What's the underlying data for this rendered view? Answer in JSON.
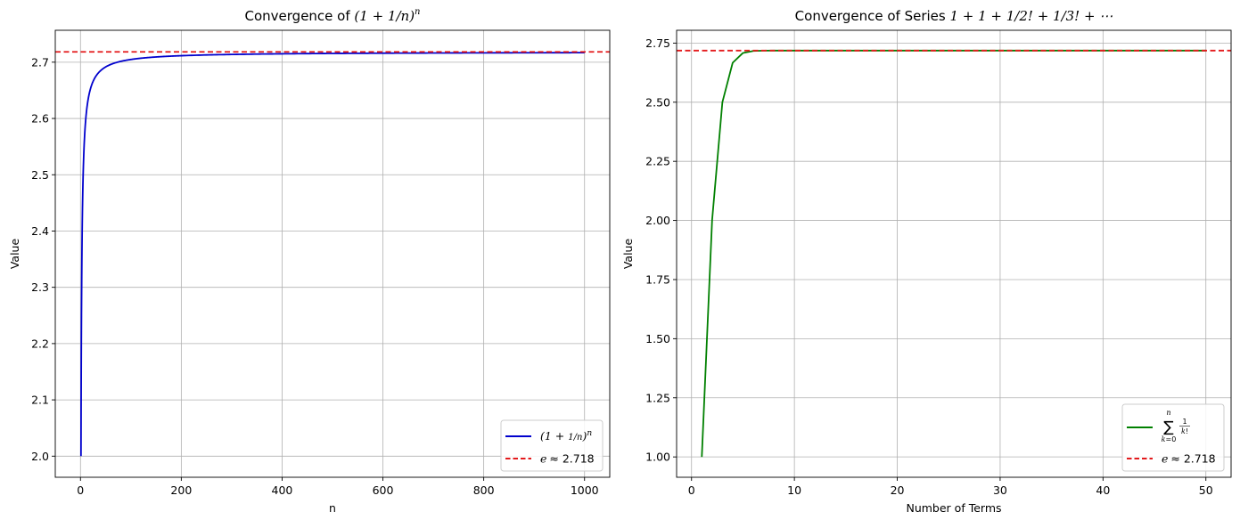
{
  "colors": {
    "series1": "#0000cd",
    "series2": "#008000",
    "reference": "#e31a1c",
    "grid": "#b0b0b0",
    "axes": "#000000"
  },
  "chart_data": [
    {
      "type": "line",
      "title": "Convergence of (1 + 1/n)ⁿ",
      "title_prefix": "Convergence of ",
      "xlabel": "n",
      "ylabel": "Value",
      "xlim": [
        -50,
        1050
      ],
      "ylim": [
        1.9625,
        2.7567
      ],
      "xticks": [
        0,
        200,
        400,
        600,
        800,
        1000
      ],
      "xtick_labels": [
        "0",
        "200",
        "400",
        "600",
        "800",
        "1000"
      ],
      "yticks": [
        2.0,
        2.1,
        2.2,
        2.3,
        2.4,
        2.5,
        2.6,
        2.7
      ],
      "ytick_labels": [
        "2.0",
        "2.1",
        "2.2",
        "2.3",
        "2.4",
        "2.5",
        "2.6",
        "2.7"
      ],
      "grid": true,
      "legend_position": "lower-right",
      "series": [
        {
          "name": "(1 + 1/n)ⁿ",
          "function": "(1+1/n)^n",
          "x_range": [
            1,
            1000
          ],
          "style": "solid"
        }
      ],
      "reference_line": {
        "name": "e ≈ 2.718",
        "label_prefix": "e",
        "label_value": "≈ 2.718",
        "y": 2.71828,
        "style": "dashed"
      }
    },
    {
      "type": "line",
      "title": "Convergence of Series 1 + 1 + 1/2! + 1/3! + ⋯",
      "title_prefix": "Convergence of Series ",
      "xlabel": "Number of Terms",
      "ylabel": "Value",
      "xlim": [
        -1.45,
        52.45
      ],
      "ylim": [
        0.914,
        2.8042
      ],
      "xticks": [
        0,
        10,
        20,
        30,
        40,
        50
      ],
      "xtick_labels": [
        "0",
        "10",
        "20",
        "30",
        "40",
        "50"
      ],
      "yticks": [
        1.0,
        1.25,
        1.5,
        1.75,
        2.0,
        2.25,
        2.5,
        2.75
      ],
      "ytick_labels": [
        "1.00",
        "1.25",
        "1.50",
        "1.75",
        "2.00",
        "2.25",
        "2.50",
        "2.75"
      ],
      "grid": true,
      "legend_position": "lower-right",
      "series": [
        {
          "name": "∑ 1/k! (k = 0 … n)",
          "function": "sum_{k=0}^{n-1} 1/k!",
          "x_range": [
            1,
            50
          ],
          "style": "solid"
        }
      ],
      "reference_line": {
        "name": "e ≈ 2.718",
        "label_prefix": "e",
        "label_value": "≈ 2.718",
        "y": 2.71828,
        "style": "dashed"
      }
    }
  ]
}
